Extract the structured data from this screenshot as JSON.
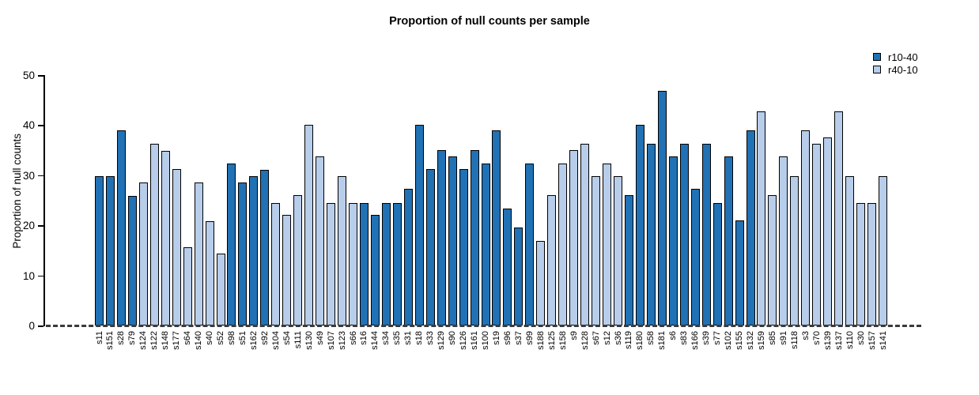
{
  "title": "Proportion of null counts per sample",
  "legend": [
    {
      "label": "r10-40",
      "color": "#2171b5"
    },
    {
      "label": "r40-10",
      "color": "#b7cdea"
    }
  ],
  "chart_data": {
    "type": "bar",
    "title": "Proportion of null counts per sample",
    "xlabel": "",
    "ylabel": "Proportion of null counts",
    "ylim": [
      0,
      50
    ],
    "yticks": [
      0,
      10,
      20,
      30,
      40,
      50
    ],
    "grid": false,
    "legend_position": "top-right",
    "series_colors": {
      "r10-40": "#2171b5",
      "r40-10": "#b7cdea"
    },
    "baseline_style": "dashed",
    "bars": [
      {
        "sample": "s11",
        "group": "r10-40",
        "value": 29.8
      },
      {
        "sample": "s151",
        "group": "r10-40",
        "value": 29.8
      },
      {
        "sample": "s28",
        "group": "r10-40",
        "value": 38.9
      },
      {
        "sample": "s79",
        "group": "r10-40",
        "value": 25.9
      },
      {
        "sample": "s124",
        "group": "r40-10",
        "value": 28.5
      },
      {
        "sample": "s122",
        "group": "r40-10",
        "value": 36.3
      },
      {
        "sample": "s148",
        "group": "r40-10",
        "value": 34.9
      },
      {
        "sample": "s177",
        "group": "r40-10",
        "value": 31.2
      },
      {
        "sample": "s64",
        "group": "r40-10",
        "value": 15.6
      },
      {
        "sample": "s140",
        "group": "r40-10",
        "value": 28.5
      },
      {
        "sample": "s40",
        "group": "r40-10",
        "value": 20.8
      },
      {
        "sample": "s52",
        "group": "r40-10",
        "value": 14.3
      },
      {
        "sample": "s98",
        "group": "r10-40",
        "value": 32.4
      },
      {
        "sample": "s51",
        "group": "r10-40",
        "value": 28.5
      },
      {
        "sample": "s162",
        "group": "r10-40",
        "value": 29.8
      },
      {
        "sample": "s92",
        "group": "r10-40",
        "value": 31.1
      },
      {
        "sample": "s104",
        "group": "r40-10",
        "value": 24.5
      },
      {
        "sample": "s54",
        "group": "r40-10",
        "value": 22.1
      },
      {
        "sample": "s111",
        "group": "r40-10",
        "value": 26.0
      },
      {
        "sample": "s130",
        "group": "r40-10",
        "value": 40.1
      },
      {
        "sample": "s49",
        "group": "r40-10",
        "value": 33.7
      },
      {
        "sample": "s107",
        "group": "r40-10",
        "value": 24.5
      },
      {
        "sample": "s123",
        "group": "r40-10",
        "value": 29.8
      },
      {
        "sample": "s66",
        "group": "r40-10",
        "value": 24.5
      },
      {
        "sample": "s16",
        "group": "r10-40",
        "value": 24.5
      },
      {
        "sample": "s144",
        "group": "r10-40",
        "value": 22.1
      },
      {
        "sample": "s34",
        "group": "r10-40",
        "value": 24.5
      },
      {
        "sample": "s35",
        "group": "r10-40",
        "value": 24.5
      },
      {
        "sample": "s31",
        "group": "r10-40",
        "value": 27.3
      },
      {
        "sample": "s18",
        "group": "r10-40",
        "value": 40.1
      },
      {
        "sample": "s33",
        "group": "r10-40",
        "value": 31.2
      },
      {
        "sample": "s129",
        "group": "r10-40",
        "value": 35.0
      },
      {
        "sample": "s90",
        "group": "r10-40",
        "value": 33.7
      },
      {
        "sample": "s126",
        "group": "r10-40",
        "value": 31.2
      },
      {
        "sample": "s161",
        "group": "r10-40",
        "value": 35.0
      },
      {
        "sample": "s100",
        "group": "r10-40",
        "value": 32.4
      },
      {
        "sample": "s19",
        "group": "r10-40",
        "value": 38.9
      },
      {
        "sample": "s96",
        "group": "r10-40",
        "value": 23.3
      },
      {
        "sample": "s37",
        "group": "r10-40",
        "value": 19.5
      },
      {
        "sample": "s99",
        "group": "r10-40",
        "value": 32.4
      },
      {
        "sample": "s188",
        "group": "r40-10",
        "value": 16.9
      },
      {
        "sample": "s125",
        "group": "r40-10",
        "value": 26.0
      },
      {
        "sample": "s158",
        "group": "r40-10",
        "value": 32.4
      },
      {
        "sample": "s9",
        "group": "r40-10",
        "value": 35.0
      },
      {
        "sample": "s128",
        "group": "r40-10",
        "value": 36.3
      },
      {
        "sample": "s67",
        "group": "r40-10",
        "value": 29.8
      },
      {
        "sample": "s12",
        "group": "r40-10",
        "value": 32.4
      },
      {
        "sample": "s36",
        "group": "r40-10",
        "value": 29.8
      },
      {
        "sample": "s119",
        "group": "r10-40",
        "value": 26.0
      },
      {
        "sample": "s180",
        "group": "r10-40",
        "value": 40.1
      },
      {
        "sample": "s58",
        "group": "r10-40",
        "value": 36.3
      },
      {
        "sample": "s181",
        "group": "r10-40",
        "value": 46.8
      },
      {
        "sample": "s6",
        "group": "r10-40",
        "value": 33.7
      },
      {
        "sample": "s83",
        "group": "r10-40",
        "value": 36.3
      },
      {
        "sample": "s166",
        "group": "r10-40",
        "value": 27.3
      },
      {
        "sample": "s39",
        "group": "r10-40",
        "value": 36.3
      },
      {
        "sample": "s77",
        "group": "r10-40",
        "value": 24.5
      },
      {
        "sample": "s102",
        "group": "r10-40",
        "value": 33.7
      },
      {
        "sample": "s155",
        "group": "r10-40",
        "value": 20.9
      },
      {
        "sample": "s132",
        "group": "r10-40",
        "value": 38.9
      },
      {
        "sample": "s159",
        "group": "r40-10",
        "value": 42.7
      },
      {
        "sample": "s85",
        "group": "r40-10",
        "value": 26.0
      },
      {
        "sample": "s91",
        "group": "r40-10",
        "value": 33.7
      },
      {
        "sample": "s118",
        "group": "r40-10",
        "value": 29.8
      },
      {
        "sample": "s3",
        "group": "r40-10",
        "value": 38.9
      },
      {
        "sample": "s70",
        "group": "r40-10",
        "value": 36.3
      },
      {
        "sample": "s139",
        "group": "r40-10",
        "value": 37.6
      },
      {
        "sample": "s137",
        "group": "r40-10",
        "value": 42.7
      },
      {
        "sample": "s110",
        "group": "r40-10",
        "value": 29.8
      },
      {
        "sample": "s30",
        "group": "r40-10",
        "value": 24.5
      },
      {
        "sample": "s157",
        "group": "r40-10",
        "value": 24.5
      },
      {
        "sample": "s141",
        "group": "r40-10",
        "value": 29.8
      }
    ]
  }
}
